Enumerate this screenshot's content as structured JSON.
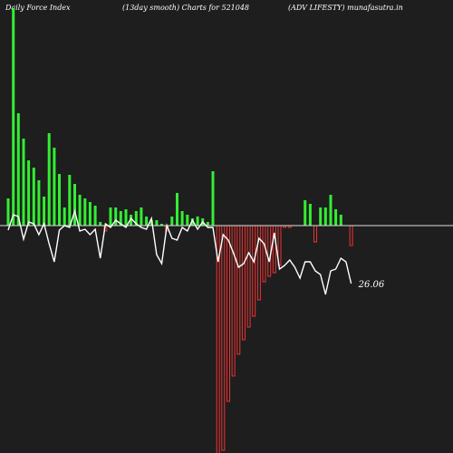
{
  "header": {
    "left": "Daily Force  Index",
    "center": "(13day smooth) Charts for 521048",
    "right": "(ADV LIFESTY) munafasutra.in"
  },
  "colors": {
    "background": "#1e1e1e",
    "positive": "#33ee33",
    "negative": "#ee3333",
    "line": "#ffffff",
    "baseline": "#dddddd"
  },
  "chart_data": {
    "type": "bar",
    "series": [
      {
        "values": [
          30,
          240,
          124,
          96,
          72,
          64,
          50,
          32,
          102,
          86,
          57,
          20,
          56,
          46,
          34,
          30,
          26,
          22,
          4,
          -6,
          20,
          20,
          16,
          18,
          12,
          16,
          20,
          10,
          6,
          6,
          2,
          -6,
          10,
          36,
          16,
          12,
          8,
          10,
          8,
          4,
          60,
          -254,
          -248,
          -194,
          -166,
          -142,
          -126,
          -112,
          -100,
          -82,
          -62,
          -56,
          -52,
          -44,
          -2,
          -2,
          0,
          0,
          28,
          24,
          -18,
          20,
          20,
          34,
          18,
          12,
          0,
          -22
        ]
      },
      {
        "values": [
          -5,
          12,
          10,
          -15,
          4,
          2,
          -10,
          2,
          -20,
          -40,
          -5,
          0,
          -2,
          16,
          -6,
          -4,
          -10,
          -4,
          -36,
          2,
          -2,
          6,
          2,
          -2,
          8,
          2,
          -2,
          -4,
          8,
          -32,
          -42,
          0,
          -14,
          -16,
          -2,
          -6,
          6,
          -4,
          4,
          -2,
          -2,
          -40,
          -10,
          -16,
          -30,
          -46,
          -42,
          -30,
          -40,
          -14,
          -20,
          -40,
          -8,
          -48,
          -44,
          -38,
          -46,
          -58,
          -40,
          -40,
          -50,
          -54,
          -76,
          -50,
          -48,
          -36,
          -40,
          -64
        ]
      }
    ],
    "last_label": "26.06"
  }
}
